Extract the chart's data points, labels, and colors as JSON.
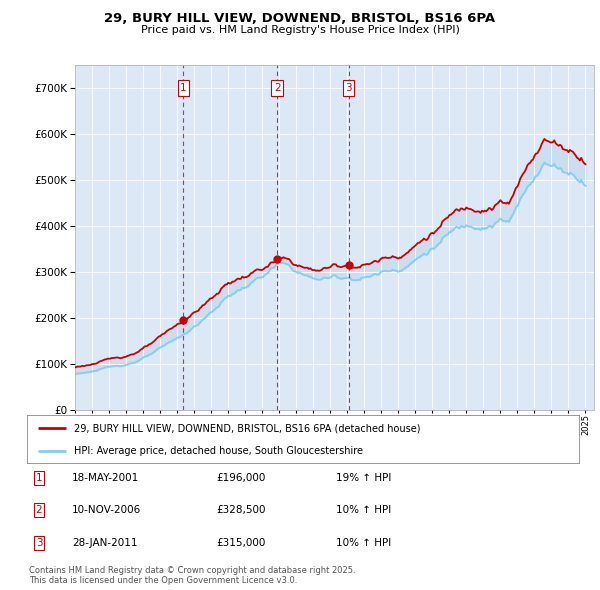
{
  "title_line1": "29, BURY HILL VIEW, DOWNEND, BRISTOL, BS16 6PA",
  "title_line2": "Price paid vs. HM Land Registry's House Price Index (HPI)",
  "ylim": [
    0,
    750000
  ],
  "yticks": [
    0,
    100000,
    200000,
    300000,
    400000,
    500000,
    600000,
    700000
  ],
  "sale_prices": [
    196000,
    328500,
    315000
  ],
  "sale_years_num": [
    2001.376,
    2006.876,
    2011.074
  ],
  "sale_labels": [
    "1",
    "2",
    "3"
  ],
  "hpi_color": "#87CEEB",
  "price_color": "#CC0000",
  "chart_bg": "#dce8f5",
  "legend_price_label": "29, BURY HILL VIEW, DOWNEND, BRISTOL, BS16 6PA (detached house)",
  "legend_hpi_label": "HPI: Average price, detached house, South Gloucestershire",
  "table_entries": [
    {
      "num": "1",
      "date": "18-MAY-2001",
      "price": "£196,000",
      "change": "19% ↑ HPI"
    },
    {
      "num": "2",
      "date": "10-NOV-2006",
      "price": "£328,500",
      "change": "10% ↑ HPI"
    },
    {
      "num": "3",
      "date": "28-JAN-2011",
      "price": "£315,000",
      "change": "10% ↑ HPI"
    }
  ],
  "footer_line1": "Contains HM Land Registry data © Crown copyright and database right 2025.",
  "footer_line2": "This data is licensed under the Open Government Licence v3.0."
}
